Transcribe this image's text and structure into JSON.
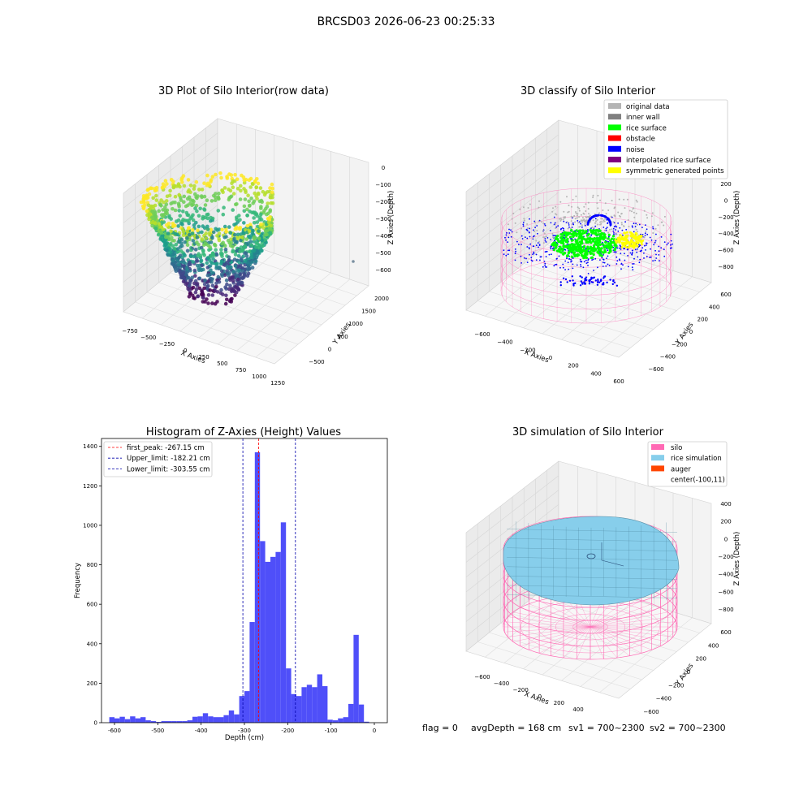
{
  "figure_title": "BRCSD03 2026-06-23 00:25:33",
  "status": {
    "flag": "flag = 0",
    "avg_depth": "avgDepth = 168 cm",
    "sv1": "sv1 = 700~2300",
    "sv2": "sv2 = 700~2300"
  },
  "colors": {
    "hist_bar": "#4b4bf9",
    "first_peak": "#ff0000",
    "limits": "#0000aa",
    "silo": "#ff69b4",
    "rice_simulation": "#87ceeb",
    "auger": "#ff4500"
  },
  "chart_data": [
    {
      "type": "scatter",
      "title": "3D Plot of Silo Interior(row data)",
      "xlabel": "X Axies",
      "ylabel": "Y Axies",
      "zlabel": "Z Axies (Depth)",
      "x_ticks": [
        "−750",
        "−500",
        "−250",
        "0",
        "250",
        "500",
        "750",
        "1000",
        "1250"
      ],
      "y_ticks": [
        "−500",
        "0",
        "500",
        "1000",
        "1500",
        "2000"
      ],
      "z_ticks": [
        "0",
        "−100",
        "−200",
        "−300",
        "−400",
        "−500",
        "−600"
      ],
      "xlim": [
        -800,
        1300
      ],
      "ylim": [
        -600,
        2200
      ],
      "zlim": [
        -650,
        20
      ],
      "colormap": "viridis"
    },
    {
      "type": "scatter",
      "title": "3D classify of Silo Interior",
      "xlabel": "X Axies",
      "ylabel": "Y Axies",
      "zlabel": "Z Axies (Depth)",
      "x_ticks": [
        "−600",
        "−400",
        "−200",
        "0",
        "200",
        "400",
        "600"
      ],
      "y_ticks": [
        "−600",
        "−400",
        "−200",
        "0",
        "200",
        "400",
        "600"
      ],
      "z_ticks": [
        "200",
        "0",
        "−200",
        "−400",
        "−600",
        "−800"
      ],
      "legend": [
        {
          "label": "original data",
          "color": "#b4b4b4"
        },
        {
          "label": "inner wall",
          "color": "#808080"
        },
        {
          "label": "rice surface",
          "color": "#00ff00"
        },
        {
          "label": "obstacle",
          "color": "#ff0000"
        },
        {
          "label": "noise",
          "color": "#0000ff"
        },
        {
          "label": "interpolated rice surface",
          "color": "#800080"
        },
        {
          "label": "symmetric generated points",
          "color": "#ffff00"
        }
      ],
      "legend_position": "top-right"
    },
    {
      "type": "bar",
      "title": "Histogram of Z-Axies (Height) Values",
      "xlabel": "Depth (cm)",
      "ylabel": "Frequency",
      "xlim": [
        -630,
        30
      ],
      "ylim": [
        0,
        1440
      ],
      "x_ticks": [
        -600,
        -500,
        -400,
        -300,
        -200,
        -100,
        0
      ],
      "y_ticks": [
        0,
        200,
        400,
        600,
        800,
        1000,
        1200,
        1400
      ],
      "bin_width": 12,
      "bins": [
        {
          "x": -612,
          "count": 28
        },
        {
          "x": -600,
          "count": 22
        },
        {
          "x": -588,
          "count": 30
        },
        {
          "x": -576,
          "count": 18
        },
        {
          "x": -564,
          "count": 32
        },
        {
          "x": -552,
          "count": 22
        },
        {
          "x": -540,
          "count": 28
        },
        {
          "x": -528,
          "count": 12
        },
        {
          "x": -516,
          "count": 8
        },
        {
          "x": -504,
          "count": 4
        },
        {
          "x": -492,
          "count": 8
        },
        {
          "x": -480,
          "count": 8
        },
        {
          "x": -468,
          "count": 8
        },
        {
          "x": -456,
          "count": 8
        },
        {
          "x": -444,
          "count": 8
        },
        {
          "x": -432,
          "count": 12
        },
        {
          "x": -420,
          "count": 30
        },
        {
          "x": -408,
          "count": 32
        },
        {
          "x": -396,
          "count": 48
        },
        {
          "x": -384,
          "count": 32
        },
        {
          "x": -372,
          "count": 28
        },
        {
          "x": -360,
          "count": 28
        },
        {
          "x": -348,
          "count": 38
        },
        {
          "x": -336,
          "count": 62
        },
        {
          "x": -324,
          "count": 42
        },
        {
          "x": -312,
          "count": 135
        },
        {
          "x": -300,
          "count": 160
        },
        {
          "x": -288,
          "count": 510
        },
        {
          "x": -276,
          "count": 1370
        },
        {
          "x": -264,
          "count": 920
        },
        {
          "x": -252,
          "count": 815
        },
        {
          "x": -240,
          "count": 840
        },
        {
          "x": -228,
          "count": 865
        },
        {
          "x": -216,
          "count": 1015
        },
        {
          "x": -204,
          "count": 275
        },
        {
          "x": -192,
          "count": 145
        },
        {
          "x": -180,
          "count": 135
        },
        {
          "x": -168,
          "count": 180
        },
        {
          "x": -156,
          "count": 192
        },
        {
          "x": -144,
          "count": 180
        },
        {
          "x": -132,
          "count": 245
        },
        {
          "x": -120,
          "count": 185
        },
        {
          "x": -108,
          "count": 15
        },
        {
          "x": -96,
          "count": 12
        },
        {
          "x": -84,
          "count": 22
        },
        {
          "x": -72,
          "count": 28
        },
        {
          "x": -60,
          "count": 95
        },
        {
          "x": -48,
          "count": 445
        },
        {
          "x": -36,
          "count": 92
        },
        {
          "x": -24,
          "count": 5
        }
      ],
      "vlines": [
        {
          "label": "first_peak: -267.15 cm",
          "x": -267.15,
          "color": "#ff0000"
        },
        {
          "label": "Upper_limit: -182.21 cm",
          "x": -182.21,
          "color": "#0000aa"
        },
        {
          "label": "Lower_limit: -303.55 cm",
          "x": -303.55,
          "color": "#0000aa"
        }
      ],
      "legend_position": "top-left"
    },
    {
      "type": "other",
      "title": "3D simulation of Silo Interior",
      "xlabel": "X Axies",
      "ylabel": "Y Axies",
      "zlabel": "Z Axies (Depth)",
      "x_ticks": [
        "−600",
        "−400",
        "−200",
        "0",
        "200",
        "400"
      ],
      "y_ticks": [
        "−600",
        "−400",
        "−200",
        "0",
        "200",
        "400",
        "600"
      ],
      "z_ticks": [
        "400",
        "200",
        "0",
        "−200",
        "−400",
        "−600",
        "−800"
      ],
      "legend": [
        {
          "label": "silo",
          "color": "#ff69b4"
        },
        {
          "label": "rice simulation",
          "color": "#87ceeb"
        },
        {
          "label": "auger",
          "color": "#ff4500"
        },
        {
          "label": "center(-100,11)",
          "color": ""
        }
      ],
      "legend_position": "top-right"
    }
  ]
}
